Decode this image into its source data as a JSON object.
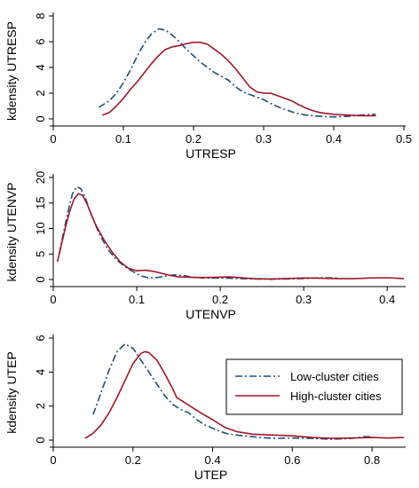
{
  "chart_data": [
    {
      "type": "line",
      "xlabel": "UTRESP",
      "ylabel": "kdensity UTRESP",
      "xlim": [
        0,
        0.5
      ],
      "ylim": [
        0,
        8
      ],
      "xticks": [
        "0",
        "0.1",
        "0.2",
        "0.3",
        "0.4",
        "0.5"
      ],
      "yticks": [
        "0",
        "2",
        "4",
        "6",
        "8"
      ],
      "series": [
        {
          "key": "low",
          "color": "#1f4e79",
          "dash": "dashdot",
          "points": [
            [
              0.065,
              0.9
            ],
            [
              0.08,
              1.4
            ],
            [
              0.09,
              2.0
            ],
            [
              0.1,
              2.8
            ],
            [
              0.11,
              3.8
            ],
            [
              0.12,
              4.9
            ],
            [
              0.13,
              5.9
            ],
            [
              0.14,
              6.6
            ],
            [
              0.15,
              7.0
            ],
            [
              0.16,
              6.9
            ],
            [
              0.17,
              6.5
            ],
            [
              0.18,
              6.0
            ],
            [
              0.19,
              5.4
            ],
            [
              0.2,
              4.9
            ],
            [
              0.21,
              4.4
            ],
            [
              0.22,
              4.0
            ],
            [
              0.23,
              3.6
            ],
            [
              0.24,
              3.3
            ],
            [
              0.25,
              3.0
            ],
            [
              0.26,
              2.5
            ],
            [
              0.27,
              2.1
            ],
            [
              0.28,
              1.9
            ],
            [
              0.29,
              1.7
            ],
            [
              0.3,
              1.5
            ],
            [
              0.31,
              1.2
            ],
            [
              0.32,
              0.95
            ],
            [
              0.33,
              0.75
            ],
            [
              0.34,
              0.55
            ],
            [
              0.35,
              0.4
            ],
            [
              0.36,
              0.3
            ],
            [
              0.38,
              0.2
            ],
            [
              0.4,
              0.15
            ],
            [
              0.42,
              0.2
            ],
            [
              0.44,
              0.3
            ],
            [
              0.46,
              0.35
            ]
          ]
        },
        {
          "key": "high",
          "color": "#a1172b",
          "dash": "solid",
          "points": [
            [
              0.07,
              0.3
            ],
            [
              0.08,
              0.5
            ],
            [
              0.09,
              1.0
            ],
            [
              0.1,
              1.6
            ],
            [
              0.11,
              2.3
            ],
            [
              0.12,
              2.9
            ],
            [
              0.13,
              3.6
            ],
            [
              0.14,
              4.3
            ],
            [
              0.15,
              4.9
            ],
            [
              0.16,
              5.4
            ],
            [
              0.17,
              5.6
            ],
            [
              0.18,
              5.7
            ],
            [
              0.19,
              5.85
            ],
            [
              0.2,
              5.95
            ],
            [
              0.21,
              5.95
            ],
            [
              0.22,
              5.8
            ],
            [
              0.23,
              5.4
            ],
            [
              0.24,
              5.0
            ],
            [
              0.25,
              4.5
            ],
            [
              0.26,
              3.9
            ],
            [
              0.27,
              3.2
            ],
            [
              0.28,
              2.5
            ],
            [
              0.29,
              2.1
            ],
            [
              0.3,
              2.0
            ],
            [
              0.31,
              2.0
            ],
            [
              0.32,
              1.8
            ],
            [
              0.33,
              1.6
            ],
            [
              0.34,
              1.4
            ],
            [
              0.35,
              1.1
            ],
            [
              0.36,
              0.85
            ],
            [
              0.37,
              0.65
            ],
            [
              0.38,
              0.5
            ],
            [
              0.4,
              0.35
            ],
            [
              0.42,
              0.3
            ],
            [
              0.44,
              0.25
            ],
            [
              0.46,
              0.25
            ]
          ]
        }
      ]
    },
    {
      "type": "line",
      "xlabel": "UTENVP",
      "ylabel": "kdensity UTENVP",
      "xlim": [
        0,
        0.42
      ],
      "ylim": [
        0,
        20
      ],
      "xticks": [
        "0",
        "0.1",
        "0.2",
        "0.3",
        "0.4"
      ],
      "yticks": [
        "0",
        "5",
        "10",
        "15",
        "20"
      ],
      "series": [
        {
          "key": "low",
          "color": "#1f4e79",
          "dash": "dashdot",
          "points": [
            [
              0.007,
              5.0
            ],
            [
              0.012,
              9.0
            ],
            [
              0.018,
              13.5
            ],
            [
              0.023,
              16.8
            ],
            [
              0.028,
              18.2
            ],
            [
              0.033,
              17.8
            ],
            [
              0.038,
              16.2
            ],
            [
              0.045,
              13.0
            ],
            [
              0.055,
              9.0
            ],
            [
              0.065,
              6.0
            ],
            [
              0.075,
              4.0
            ],
            [
              0.085,
              2.6
            ],
            [
              0.095,
              1.6
            ],
            [
              0.105,
              0.7
            ],
            [
              0.115,
              0.3
            ],
            [
              0.125,
              0.4
            ],
            [
              0.135,
              0.7
            ],
            [
              0.145,
              0.9
            ],
            [
              0.155,
              0.8
            ],
            [
              0.165,
              0.5
            ],
            [
              0.18,
              0.3
            ],
            [
              0.2,
              0.3
            ],
            [
              0.22,
              0.2
            ],
            [
              0.24,
              0.1
            ],
            [
              0.26,
              0.05
            ],
            [
              0.28,
              0.1
            ],
            [
              0.3,
              0.2
            ],
            [
              0.32,
              0.35
            ],
            [
              0.34,
              0.3
            ]
          ]
        },
        {
          "key": "high",
          "color": "#a1172b",
          "dash": "solid",
          "points": [
            [
              0.005,
              3.5
            ],
            [
              0.01,
              7.0
            ],
            [
              0.015,
              10.5
            ],
            [
              0.02,
              13.5
            ],
            [
              0.025,
              15.8
            ],
            [
              0.03,
              16.8
            ],
            [
              0.035,
              16.5
            ],
            [
              0.04,
              15.0
            ],
            [
              0.045,
              13.0
            ],
            [
              0.05,
              11.0
            ],
            [
              0.06,
              8.0
            ],
            [
              0.07,
              5.5
            ],
            [
              0.08,
              3.5
            ],
            [
              0.09,
              2.2
            ],
            [
              0.1,
              1.7
            ],
            [
              0.11,
              1.8
            ],
            [
              0.12,
              1.6
            ],
            [
              0.13,
              1.2
            ],
            [
              0.14,
              0.8
            ],
            [
              0.15,
              0.5
            ],
            [
              0.17,
              0.4
            ],
            [
              0.19,
              0.4
            ],
            [
              0.21,
              0.5
            ],
            [
              0.22,
              0.4
            ],
            [
              0.24,
              0.15
            ],
            [
              0.26,
              0.1
            ],
            [
              0.28,
              0.2
            ],
            [
              0.3,
              0.3
            ],
            [
              0.32,
              0.25
            ],
            [
              0.34,
              0.15
            ],
            [
              0.36,
              0.15
            ],
            [
              0.38,
              0.3
            ],
            [
              0.4,
              0.35
            ],
            [
              0.42,
              0.15
            ]
          ]
        }
      ]
    },
    {
      "type": "line",
      "xlabel": "UTEP",
      "ylabel": "kdensity UTEP",
      "xlim": [
        0,
        0.88
      ],
      "ylim": [
        0,
        6
      ],
      "xticks": [
        "0",
        "0.2",
        "0.4",
        "0.6",
        "0.8"
      ],
      "yticks": [
        "0",
        "2",
        "4",
        "6"
      ],
      "legend": {
        "position": "inside-right",
        "entries": [
          "Low-cluster cities",
          "High-cluster cities"
        ]
      },
      "series": [
        {
          "key": "low",
          "color": "#1f4e79",
          "dash": "dashdot",
          "points": [
            [
              0.1,
              1.5
            ],
            [
              0.12,
              2.8
            ],
            [
              0.14,
              4.1
            ],
            [
              0.16,
              5.2
            ],
            [
              0.18,
              5.65
            ],
            [
              0.2,
              5.4
            ],
            [
              0.22,
              4.7
            ],
            [
              0.24,
              4.0
            ],
            [
              0.26,
              3.3
            ],
            [
              0.28,
              2.6
            ],
            [
              0.3,
              2.1
            ],
            [
              0.32,
              1.8
            ],
            [
              0.34,
              1.6
            ],
            [
              0.36,
              1.2
            ],
            [
              0.38,
              0.9
            ],
            [
              0.4,
              0.7
            ],
            [
              0.42,
              0.5
            ],
            [
              0.44,
              0.35
            ],
            [
              0.46,
              0.3
            ],
            [
              0.5,
              0.2
            ],
            [
              0.55,
              0.1
            ],
            [
              0.6,
              0.12
            ],
            [
              0.65,
              0.1
            ],
            [
              0.7,
              0.05
            ],
            [
              0.75,
              0.1
            ],
            [
              0.78,
              0.2
            ],
            [
              0.8,
              0.2
            ]
          ]
        },
        {
          "key": "high",
          "color": "#a1172b",
          "dash": "solid",
          "points": [
            [
              0.08,
              0.1
            ],
            [
              0.1,
              0.4
            ],
            [
              0.12,
              0.9
            ],
            [
              0.14,
              1.6
            ],
            [
              0.16,
              2.5
            ],
            [
              0.18,
              3.5
            ],
            [
              0.2,
              4.5
            ],
            [
              0.22,
              5.1
            ],
            [
              0.23,
              5.2
            ],
            [
              0.24,
              5.15
            ],
            [
              0.26,
              4.7
            ],
            [
              0.28,
              3.9
            ],
            [
              0.3,
              3.0
            ],
            [
              0.31,
              2.5
            ],
            [
              0.33,
              2.2
            ],
            [
              0.35,
              1.9
            ],
            [
              0.37,
              1.6
            ],
            [
              0.4,
              1.2
            ],
            [
              0.43,
              0.75
            ],
            [
              0.46,
              0.5
            ],
            [
              0.5,
              0.35
            ],
            [
              0.55,
              0.3
            ],
            [
              0.6,
              0.25
            ],
            [
              0.65,
              0.15
            ],
            [
              0.7,
              0.1
            ],
            [
              0.75,
              0.12
            ],
            [
              0.8,
              0.15
            ],
            [
              0.84,
              0.12
            ],
            [
              0.88,
              0.15
            ]
          ]
        }
      ]
    }
  ]
}
